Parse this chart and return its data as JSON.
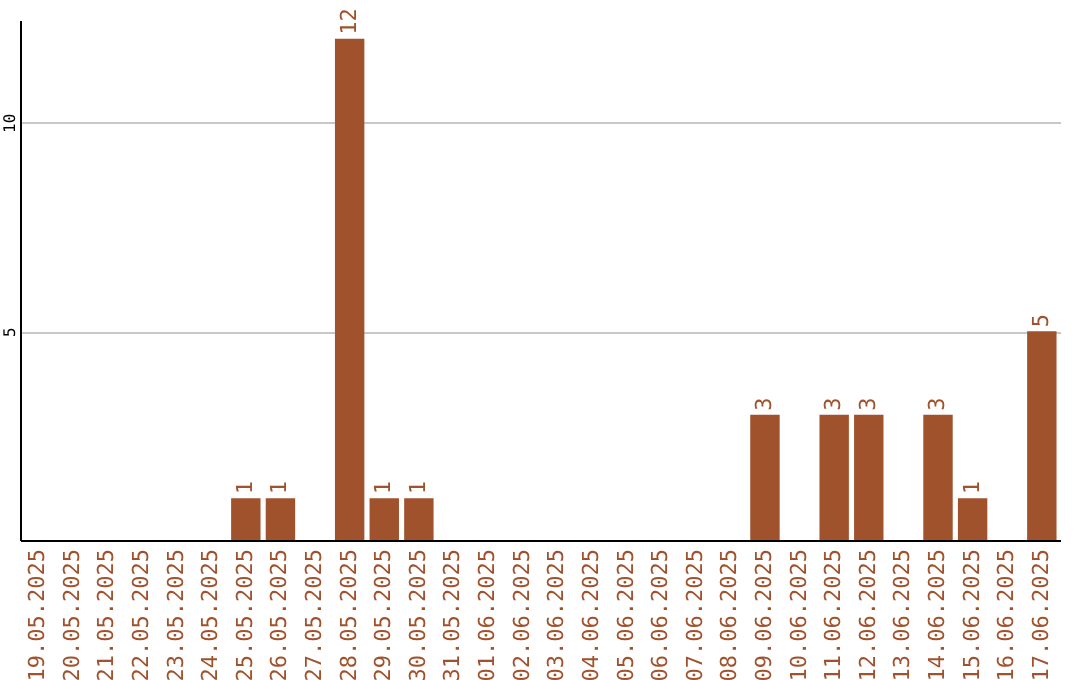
{
  "chart_data": {
    "type": "bar",
    "categories": [
      "19.05.2025",
      "20.05.2025",
      "21.05.2025",
      "22.05.2025",
      "23.05.2025",
      "24.05.2025",
      "25.05.2025",
      "26.05.2025",
      "27.05.2025",
      "28.05.2025",
      "29.05.2025",
      "30.05.2025",
      "31.05.2025",
      "01.06.2025",
      "02.06.2025",
      "03.06.2025",
      "04.06.2025",
      "05.06.2025",
      "06.06.2025",
      "07.06.2025",
      "08.06.2025",
      "09.06.2025",
      "10.06.2025",
      "11.06.2025",
      "12.06.2025",
      "13.06.2025",
      "14.06.2025",
      "15.06.2025",
      "16.06.2025",
      "17.06.2025"
    ],
    "values": [
      0,
      0,
      0,
      0,
      0,
      0,
      1,
      1,
      0,
      12,
      1,
      1,
      0,
      0,
      0,
      0,
      0,
      0,
      0,
      0,
      0,
      3,
      0,
      3,
      3,
      0,
      3,
      1,
      0,
      5
    ],
    "value_labels": [
      null,
      null,
      null,
      null,
      null,
      null,
      "1",
      "1",
      null,
      "12",
      "1",
      "1",
      null,
      null,
      null,
      null,
      null,
      null,
      null,
      null,
      null,
      "3",
      null,
      "3",
      "3",
      null,
      "3",
      "1",
      null,
      "5"
    ],
    "color": "#a0522d",
    "ylim": [
      0,
      12.45
    ],
    "yticks": [
      5,
      10
    ],
    "grid": "y"
  }
}
